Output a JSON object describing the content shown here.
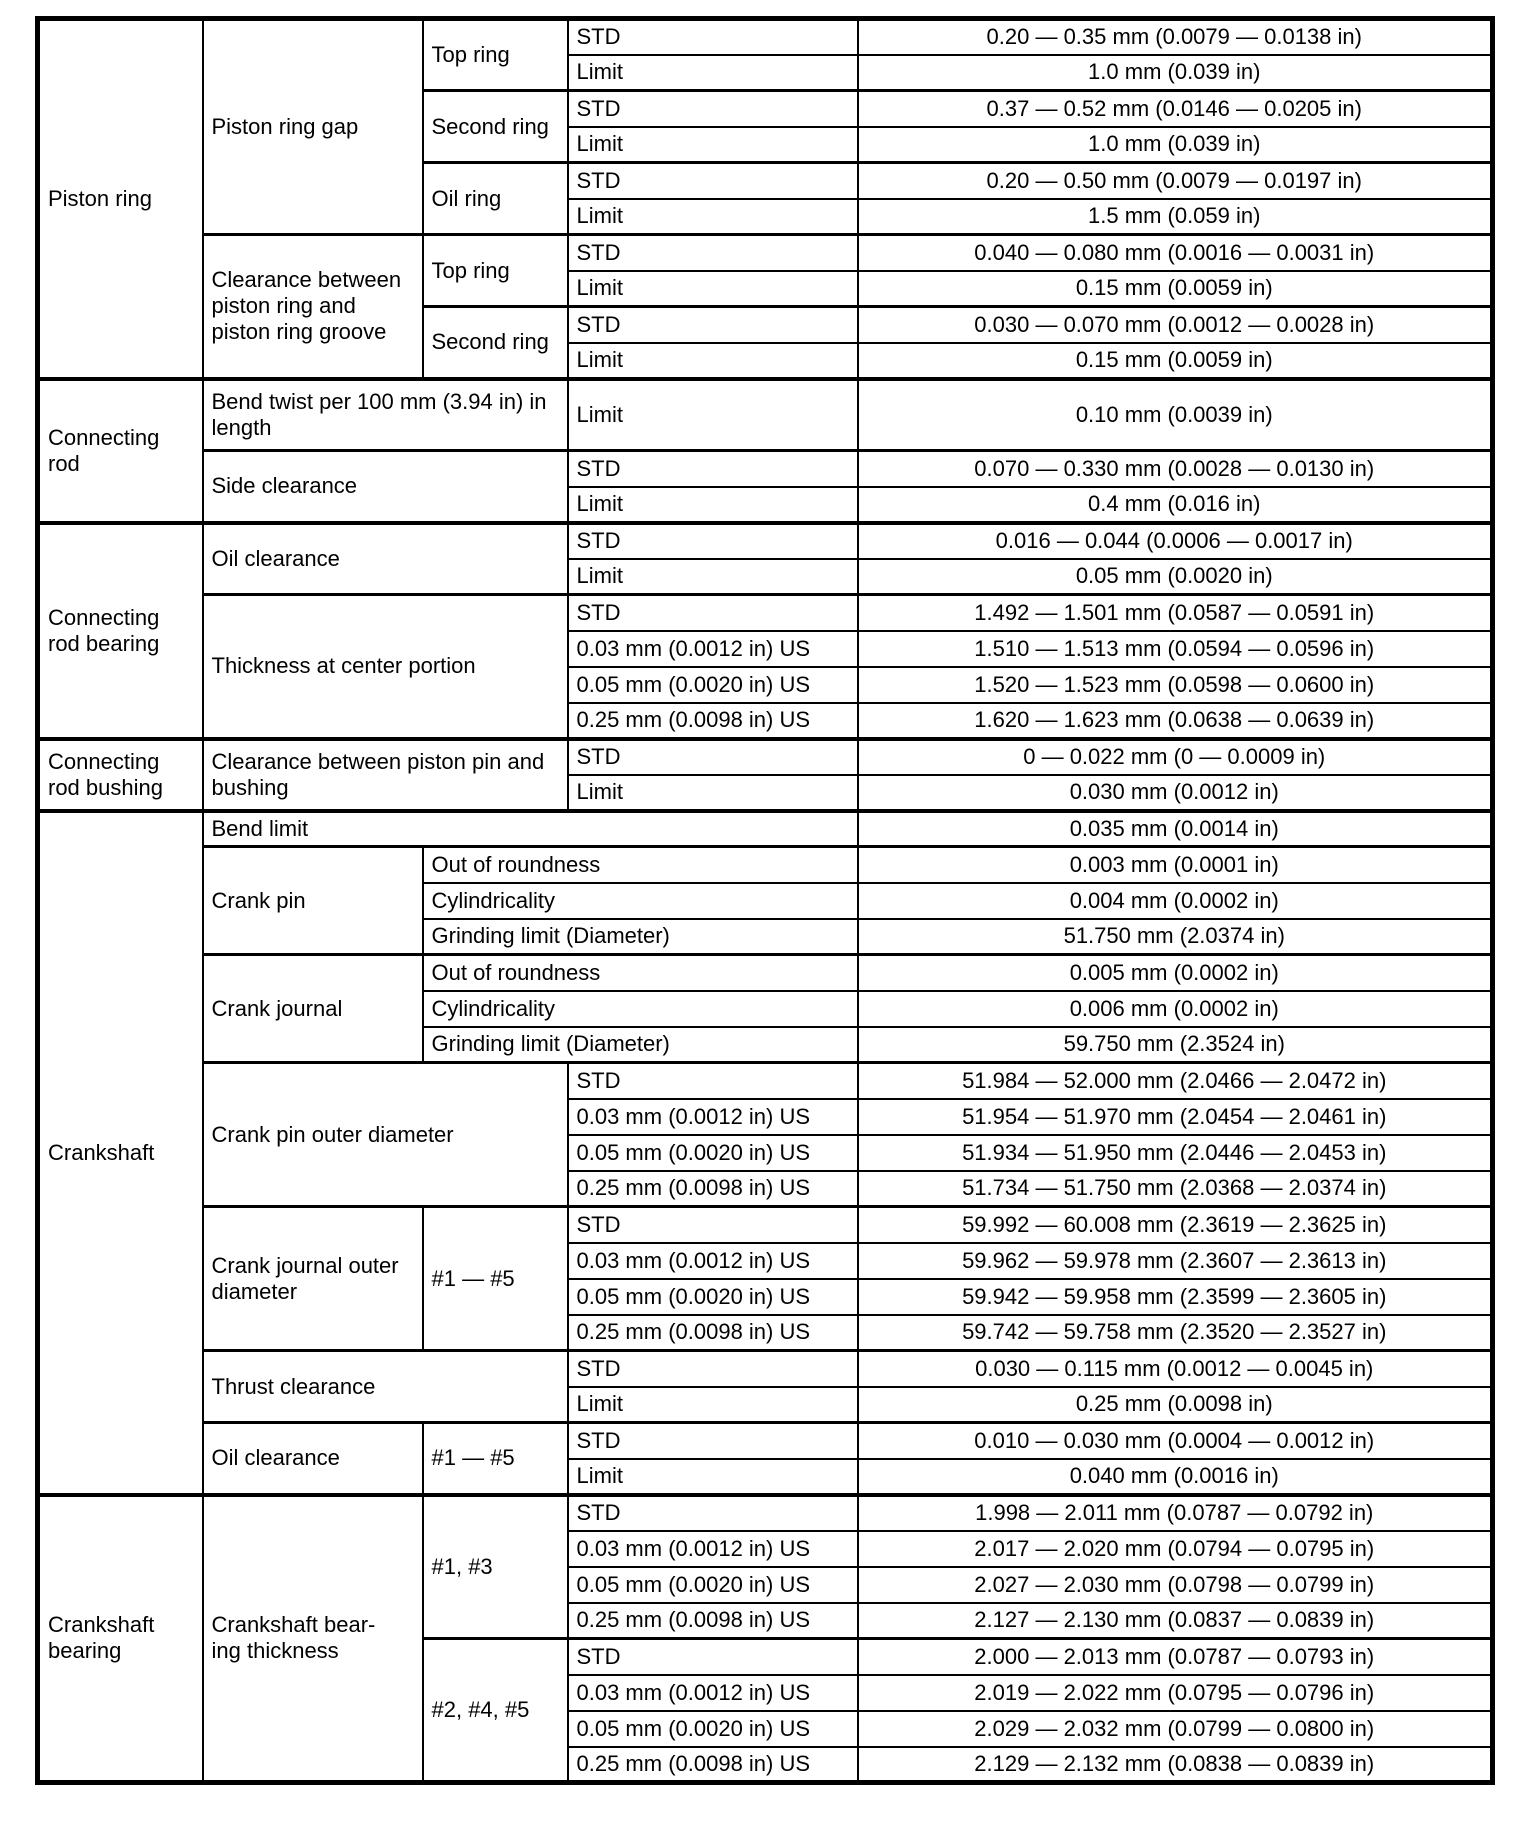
{
  "table": {
    "description": "Engine mechanical service specifications table",
    "border_color": "#000000",
    "background_color": "#ffffff",
    "columns": [
      "component",
      "item",
      "sub_item",
      "condition",
      "value"
    ],
    "rows": [
      {
        "cells": [
          {
            "text": "Piston ring",
            "rs": 10
          },
          {
            "text": "Piston ring gap",
            "rs": 6
          },
          {
            "text": "Top ring",
            "rs": 2
          },
          {
            "text": "STD"
          },
          {
            "text": "0.20 — 0.35 mm (0.0079 — 0.0138 in)",
            "v": 1
          }
        ]
      },
      {
        "cells": [
          {
            "text": "Limit"
          },
          {
            "text": "1.0 mm (0.039 in)",
            "v": 1
          }
        ]
      },
      {
        "sep": "med",
        "cells": [
          {
            "text": "Second ring",
            "rs": 2
          },
          {
            "text": "STD"
          },
          {
            "text": "0.37 — 0.52 mm (0.0146 — 0.0205 in)",
            "v": 1
          }
        ]
      },
      {
        "cells": [
          {
            "text": "Limit"
          },
          {
            "text": "1.0 mm (0.039 in)",
            "v": 1
          }
        ]
      },
      {
        "sep": "med",
        "cells": [
          {
            "text": "Oil ring",
            "rs": 2
          },
          {
            "text": "STD"
          },
          {
            "text": "0.20 — 0.50 mm (0.0079 — 0.0197 in)",
            "v": 1
          }
        ]
      },
      {
        "cells": [
          {
            "text": "Limit"
          },
          {
            "text": "1.5 mm (0.059 in)",
            "v": 1
          }
        ]
      },
      {
        "sep": "med",
        "cells": [
          {
            "text": "Clearance between piston ring and piston ring groove",
            "rs": 4
          },
          {
            "text": "Top ring",
            "rs": 2
          },
          {
            "text": "STD"
          },
          {
            "text": "0.040 — 0.080 mm (0.0016 — 0.0031 in)",
            "v": 1
          }
        ]
      },
      {
        "cells": [
          {
            "text": "Limit"
          },
          {
            "text": "0.15 mm (0.0059 in)",
            "v": 1
          }
        ]
      },
      {
        "sep": "med",
        "cells": [
          {
            "text": "Second ring",
            "rs": 2
          },
          {
            "text": "STD"
          },
          {
            "text": "0.030 — 0.070 mm (0.0012 — 0.0028 in)",
            "v": 1
          }
        ]
      },
      {
        "cells": [
          {
            "text": "Limit"
          },
          {
            "text": "0.15 mm (0.0059 in)",
            "v": 1
          }
        ]
      },
      {
        "sep": "thick",
        "tall": 1,
        "cells": [
          {
            "text": "Connecting rod",
            "rs": 3
          },
          {
            "text": "Bend twist per 100 mm (3.94 in) in length",
            "cs": 2
          },
          {
            "text": "Limit"
          },
          {
            "text": "0.10 mm (0.0039 in)",
            "v": 1
          }
        ]
      },
      {
        "sep": "med",
        "cells": [
          {
            "text": "Side clearance",
            "cs": 2,
            "rs": 2
          },
          {
            "text": "STD"
          },
          {
            "text": "0.070 — 0.330 mm (0.0028 — 0.0130 in)",
            "v": 1
          }
        ]
      },
      {
        "cells": [
          {
            "text": "Limit"
          },
          {
            "text": "0.4 mm (0.016 in)",
            "v": 1
          }
        ]
      },
      {
        "sep": "thick",
        "cells": [
          {
            "text": "Connecting rod bearing",
            "rs": 6
          },
          {
            "text": "Oil clearance",
            "cs": 2,
            "rs": 2
          },
          {
            "text": "STD"
          },
          {
            "text": "0.016 — 0.044 (0.0006 — 0.0017 in)",
            "v": 1
          }
        ]
      },
      {
        "cells": [
          {
            "text": "Limit"
          },
          {
            "text": "0.05 mm (0.0020 in)",
            "v": 1
          }
        ]
      },
      {
        "sep": "med",
        "cells": [
          {
            "text": "Thickness at center portion",
            "cs": 2,
            "rs": 4
          },
          {
            "text": "STD"
          },
          {
            "text": "1.492 — 1.501 mm (0.0587 — 0.0591 in)",
            "v": 1
          }
        ]
      },
      {
        "cells": [
          {
            "text": "0.03 mm (0.0012 in) US"
          },
          {
            "text": "1.510 — 1.513 mm (0.0594 — 0.0596 in)",
            "v": 1
          }
        ]
      },
      {
        "cells": [
          {
            "text": "0.05 mm (0.0020 in) US"
          },
          {
            "text": "1.520 — 1.523 mm (0.0598 — 0.0600 in)",
            "v": 1
          }
        ]
      },
      {
        "cells": [
          {
            "text": "0.25 mm (0.0098 in) US"
          },
          {
            "text": "1.620 — 1.623 mm (0.0638 — 0.0639 in)",
            "v": 1
          }
        ]
      },
      {
        "sep": "thick",
        "cells": [
          {
            "text": "Connecting rod bushing",
            "rs": 2
          },
          {
            "text": "Clearance between piston pin and bushing",
            "cs": 2,
            "rs": 2
          },
          {
            "text": "STD"
          },
          {
            "text": "0 — 0.022 mm (0 — 0.0009 in)",
            "v": 1
          }
        ]
      },
      {
        "cells": [
          {
            "text": "Limit"
          },
          {
            "text": "0.030 mm (0.0012 in)",
            "v": 1
          }
        ]
      },
      {
        "sep": "thick",
        "cells": [
          {
            "text": "Crankshaft",
            "rs": 19
          },
          {
            "text": "Bend limit",
            "cs": 3
          },
          {
            "text": "0.035 mm (0.0014 in)",
            "v": 1
          }
        ]
      },
      {
        "sep": "med",
        "cells": [
          {
            "text": "Crank pin",
            "rs": 3
          },
          {
            "text": "Out of roundness",
            "cs": 2
          },
          {
            "text": "0.003 mm (0.0001 in)",
            "v": 1
          }
        ]
      },
      {
        "cells": [
          {
            "text": "Cylindricality",
            "cs": 2
          },
          {
            "text": "0.004 mm (0.0002 in)",
            "v": 1
          }
        ]
      },
      {
        "cells": [
          {
            "text": "Grinding limit (Diameter)",
            "cs": 2
          },
          {
            "text": "51.750 mm (2.0374 in)",
            "v": 1
          }
        ]
      },
      {
        "sep": "med",
        "cells": [
          {
            "text": "Crank journal",
            "rs": 3
          },
          {
            "text": "Out of roundness",
            "cs": 2
          },
          {
            "text": "0.005 mm (0.0002 in)",
            "v": 1
          }
        ]
      },
      {
        "cells": [
          {
            "text": "Cylindricality",
            "cs": 2
          },
          {
            "text": "0.006 mm (0.0002 in)",
            "v": 1
          }
        ]
      },
      {
        "cells": [
          {
            "text": "Grinding limit (Diameter)",
            "cs": 2
          },
          {
            "text": "59.750 mm (2.3524 in)",
            "v": 1
          }
        ]
      },
      {
        "sep": "med",
        "cells": [
          {
            "text": "Crank pin outer diameter",
            "cs": 2,
            "rs": 4
          },
          {
            "text": "STD"
          },
          {
            "text": "51.984 — 52.000 mm (2.0466 — 2.0472 in)",
            "v": 1
          }
        ]
      },
      {
        "cells": [
          {
            "text": "0.03 mm (0.0012 in) US"
          },
          {
            "text": "51.954 — 51.970 mm (2.0454 — 2.0461 in)",
            "v": 1
          }
        ]
      },
      {
        "cells": [
          {
            "text": "0.05 mm (0.0020 in) US"
          },
          {
            "text": "51.934 — 51.950 mm (2.0446 — 2.0453 in)",
            "v": 1
          }
        ]
      },
      {
        "cells": [
          {
            "text": "0.25 mm (0.0098 in) US"
          },
          {
            "text": "51.734 — 51.750 mm (2.0368 — 2.0374 in)",
            "v": 1
          }
        ]
      },
      {
        "sep": "med",
        "cells": [
          {
            "text": "Crank journal outer diameter",
            "rs": 4
          },
          {
            "text": "#1 — #5",
            "rs": 4
          },
          {
            "text": "STD"
          },
          {
            "text": "59.992 — 60.008 mm (2.3619 — 2.3625 in)",
            "v": 1
          }
        ]
      },
      {
        "cells": [
          {
            "text": "0.03 mm (0.0012 in) US"
          },
          {
            "text": "59.962 — 59.978 mm (2.3607 — 2.3613 in)",
            "v": 1
          }
        ]
      },
      {
        "cells": [
          {
            "text": "0.05 mm (0.0020 in) US"
          },
          {
            "text": "59.942 — 59.958 mm (2.3599 — 2.3605 in)",
            "v": 1
          }
        ]
      },
      {
        "cells": [
          {
            "text": "0.25 mm (0.0098 in) US"
          },
          {
            "text": "59.742 — 59.758 mm (2.3520 — 2.3527 in)",
            "v": 1
          }
        ]
      },
      {
        "sep": "med",
        "cells": [
          {
            "text": "Thrust clearance",
            "cs": 2,
            "rs": 2
          },
          {
            "text": "STD"
          },
          {
            "text": "0.030 — 0.115 mm (0.0012 — 0.0045 in)",
            "v": 1
          }
        ]
      },
      {
        "cells": [
          {
            "text": "Limit"
          },
          {
            "text": "0.25 mm (0.0098 in)",
            "v": 1
          }
        ]
      },
      {
        "sep": "med",
        "cells": [
          {
            "text": "Oil clearance",
            "rs": 2
          },
          {
            "text": "#1 — #5",
            "rs": 2
          },
          {
            "text": "STD"
          },
          {
            "text": "0.010 — 0.030 mm (0.0004 — 0.0012 in)",
            "v": 1
          }
        ]
      },
      {
        "cells": [
          {
            "text": "Limit"
          },
          {
            "text": "0.040 mm (0.0016 in)",
            "v": 1
          }
        ]
      },
      {
        "sep": "thick",
        "cells": [
          {
            "text": "Crankshaft bearing",
            "rs": 8
          },
          {
            "text": "Crankshaft bear-\ning thickness",
            "rs": 8
          },
          {
            "text": "#1, #3",
            "rs": 4
          },
          {
            "text": "STD"
          },
          {
            "text": "1.998 — 2.011 mm (0.0787 — 0.0792 in)",
            "v": 1
          }
        ]
      },
      {
        "cells": [
          {
            "text": "0.03 mm (0.0012 in) US"
          },
          {
            "text": "2.017 — 2.020 mm (0.0794 — 0.0795 in)",
            "v": 1
          }
        ]
      },
      {
        "cells": [
          {
            "text": "0.05 mm (0.0020 in) US"
          },
          {
            "text": "2.027 — 2.030 mm (0.0798 — 0.0799 in)",
            "v": 1
          }
        ]
      },
      {
        "cells": [
          {
            "text": "0.25 mm (0.0098 in) US"
          },
          {
            "text": "2.127 — 2.130 mm (0.0837 — 0.0839 in)",
            "v": 1
          }
        ]
      },
      {
        "sep": "med",
        "cells": [
          {
            "text": "#2, #4, #5",
            "rs": 4
          },
          {
            "text": "STD"
          },
          {
            "text": "2.000 — 2.013 mm (0.0787 — 0.0793 in)",
            "v": 1
          }
        ]
      },
      {
        "cells": [
          {
            "text": "0.03 mm (0.0012 in) US"
          },
          {
            "text": "2.019 — 2.022 mm (0.0795 — 0.0796 in)",
            "v": 1
          }
        ]
      },
      {
        "cells": [
          {
            "text": "0.05 mm (0.0020 in) US"
          },
          {
            "text": "2.029 — 2.032 mm (0.0799 — 0.0800 in)",
            "v": 1
          }
        ]
      },
      {
        "cells": [
          {
            "text": "0.25 mm (0.0098 in) US"
          },
          {
            "text": "2.129 — 2.132 mm (0.0838 — 0.0839 in)",
            "v": 1
          }
        ]
      }
    ]
  }
}
